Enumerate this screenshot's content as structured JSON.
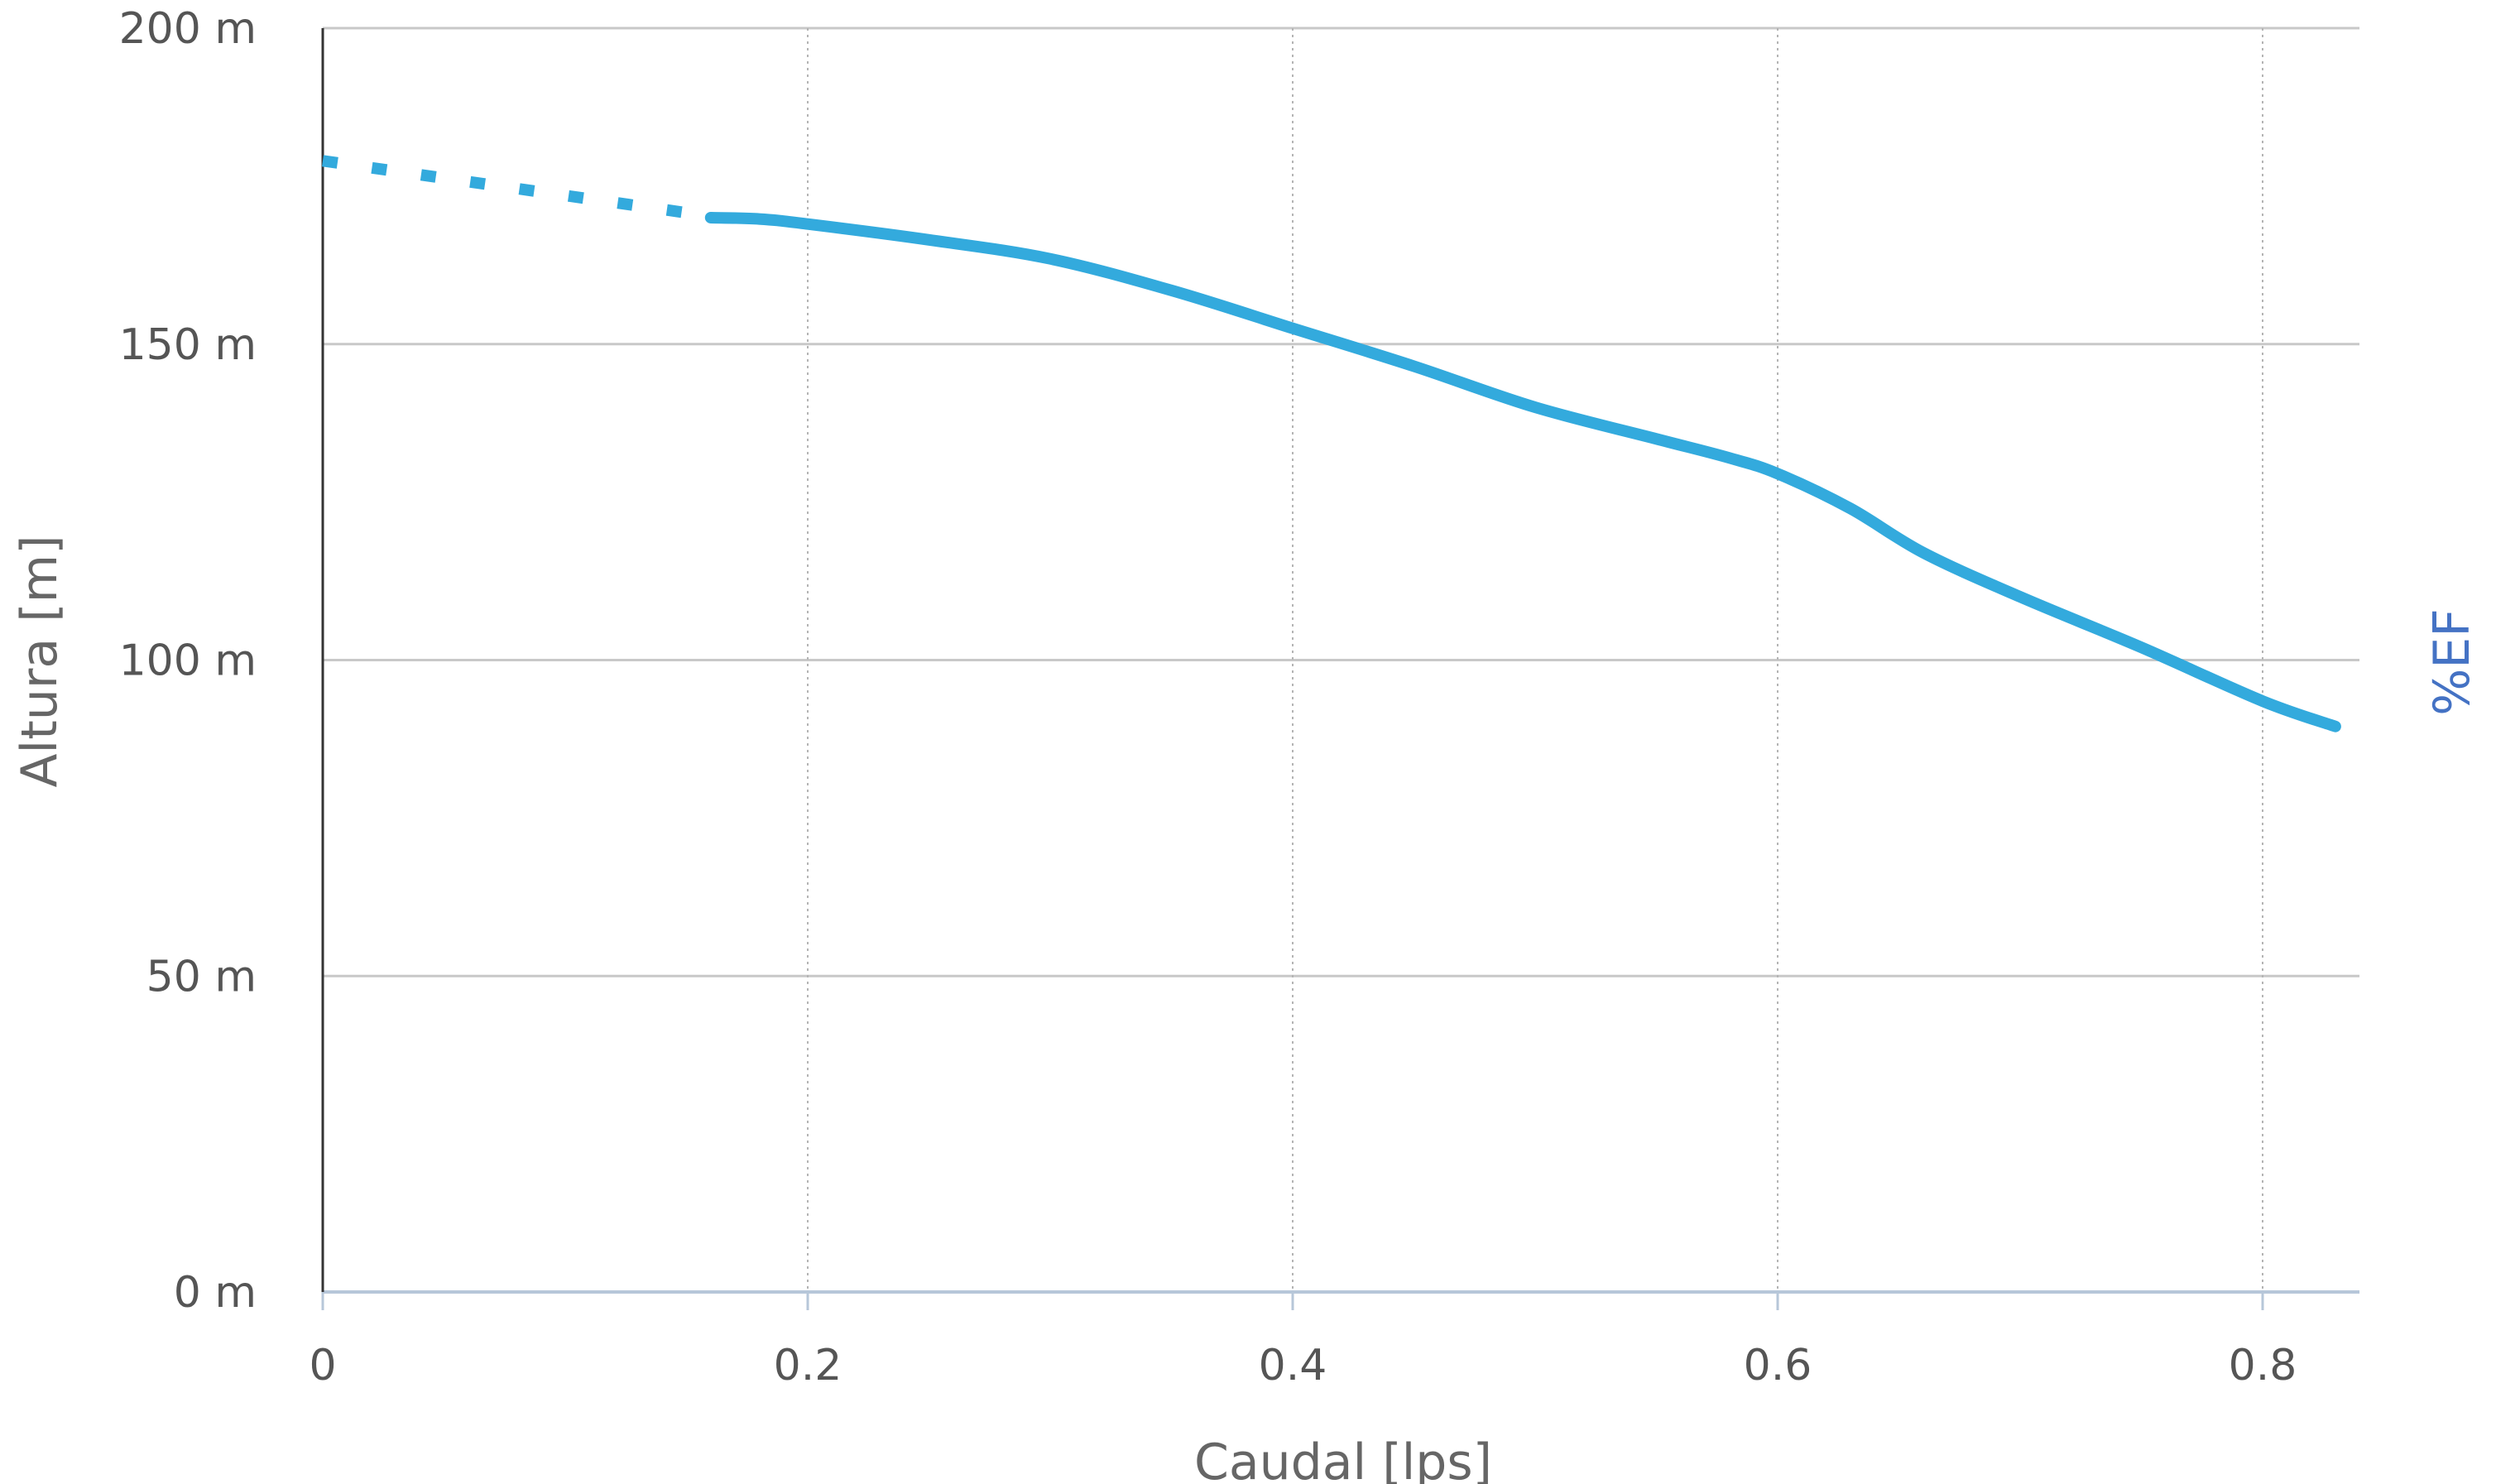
{
  "chart_data": {
    "type": "line",
    "xlabel": "Caudal [lps]",
    "ylabel": "Altura [m]",
    "y2label": "%EF",
    "xlim": [
      0,
      0.84
    ],
    "ylim": [
      0,
      200
    ],
    "x_ticks": [
      {
        "value": 0,
        "label": "0"
      },
      {
        "value": 0.2,
        "label": "0.2"
      },
      {
        "value": 0.4,
        "label": "0.4"
      },
      {
        "value": 0.6,
        "label": "0.6"
      },
      {
        "value": 0.8,
        "label": "0.8"
      }
    ],
    "y_ticks": [
      {
        "value": 0,
        "label": "0 m"
      },
      {
        "value": 50,
        "label": "50 m"
      },
      {
        "value": 100,
        "label": "100 m"
      },
      {
        "value": 150,
        "label": "150 m"
      },
      {
        "value": 200,
        "label": "200 m"
      }
    ],
    "grid": {
      "x": true,
      "y": true
    },
    "series": [
      {
        "line_style": "dotted",
        "color": "#33aadd",
        "x": [
          0,
          0.155
        ],
        "y": [
          179,
          170.5
        ]
      },
      {
        "line_style": "solid",
        "color": "#33aadd",
        "x": [
          0.16,
          0.18,
          0.2,
          0.25,
          0.3,
          0.35,
          0.4,
          0.45,
          0.5,
          0.55,
          0.58,
          0.6,
          0.63,
          0.66,
          0.7,
          0.75,
          0.8,
          0.83
        ],
        "y": [
          170,
          169.8,
          169,
          166.5,
          163.5,
          158.5,
          152.5,
          146.5,
          140,
          135,
          132,
          129.5,
          124,
          117,
          110,
          102,
          93.5,
          89.5
        ]
      }
    ],
    "colors": {
      "gridline": "#c8c8c8",
      "vertical_gridline": "#b4b4b4",
      "x_axis": "#b7c7d9",
      "y_axis": "#333333",
      "tick_text": "#555555",
      "axis_title": "#666666",
      "right_axis_title": "#4472c4"
    }
  }
}
